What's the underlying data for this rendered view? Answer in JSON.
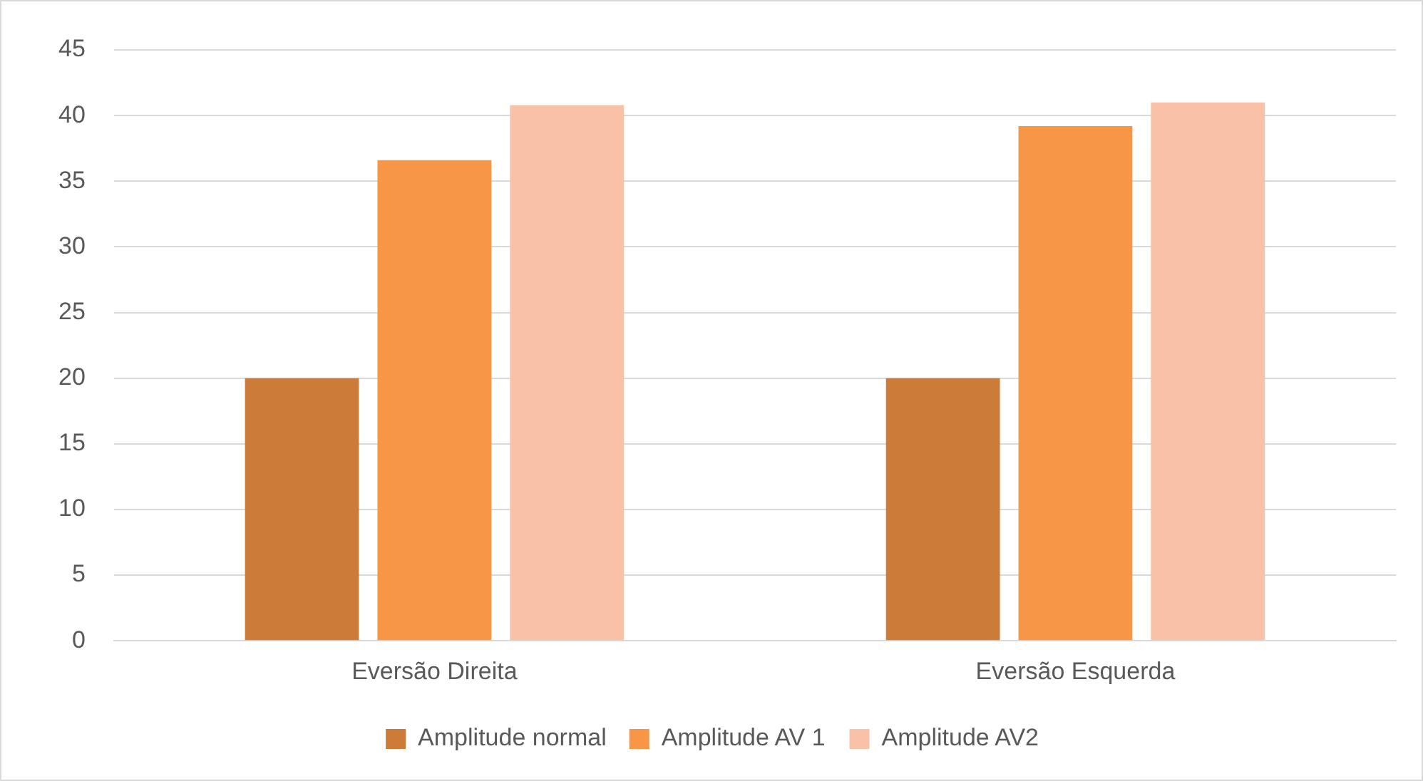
{
  "chart_data": {
    "type": "bar",
    "categories": [
      "Eversão Direita",
      "Eversão Esquerda"
    ],
    "series": [
      {
        "name": "Amplitude normal",
        "color": "#cd7b38",
        "values": [
          20,
          20
        ]
      },
      {
        "name": "Amplitude AV 1",
        "color": "#f79646",
        "values": [
          36.6,
          39.2
        ]
      },
      {
        "name": "Amplitude AV2",
        "color": "#f9c1a6",
        "values": [
          40.8,
          41
        ]
      }
    ],
    "ylim": [
      0,
      45
    ],
    "yticks": [
      0,
      5,
      10,
      15,
      20,
      25,
      30,
      35,
      40,
      45
    ],
    "grid": "y",
    "legend": "bottom"
  }
}
